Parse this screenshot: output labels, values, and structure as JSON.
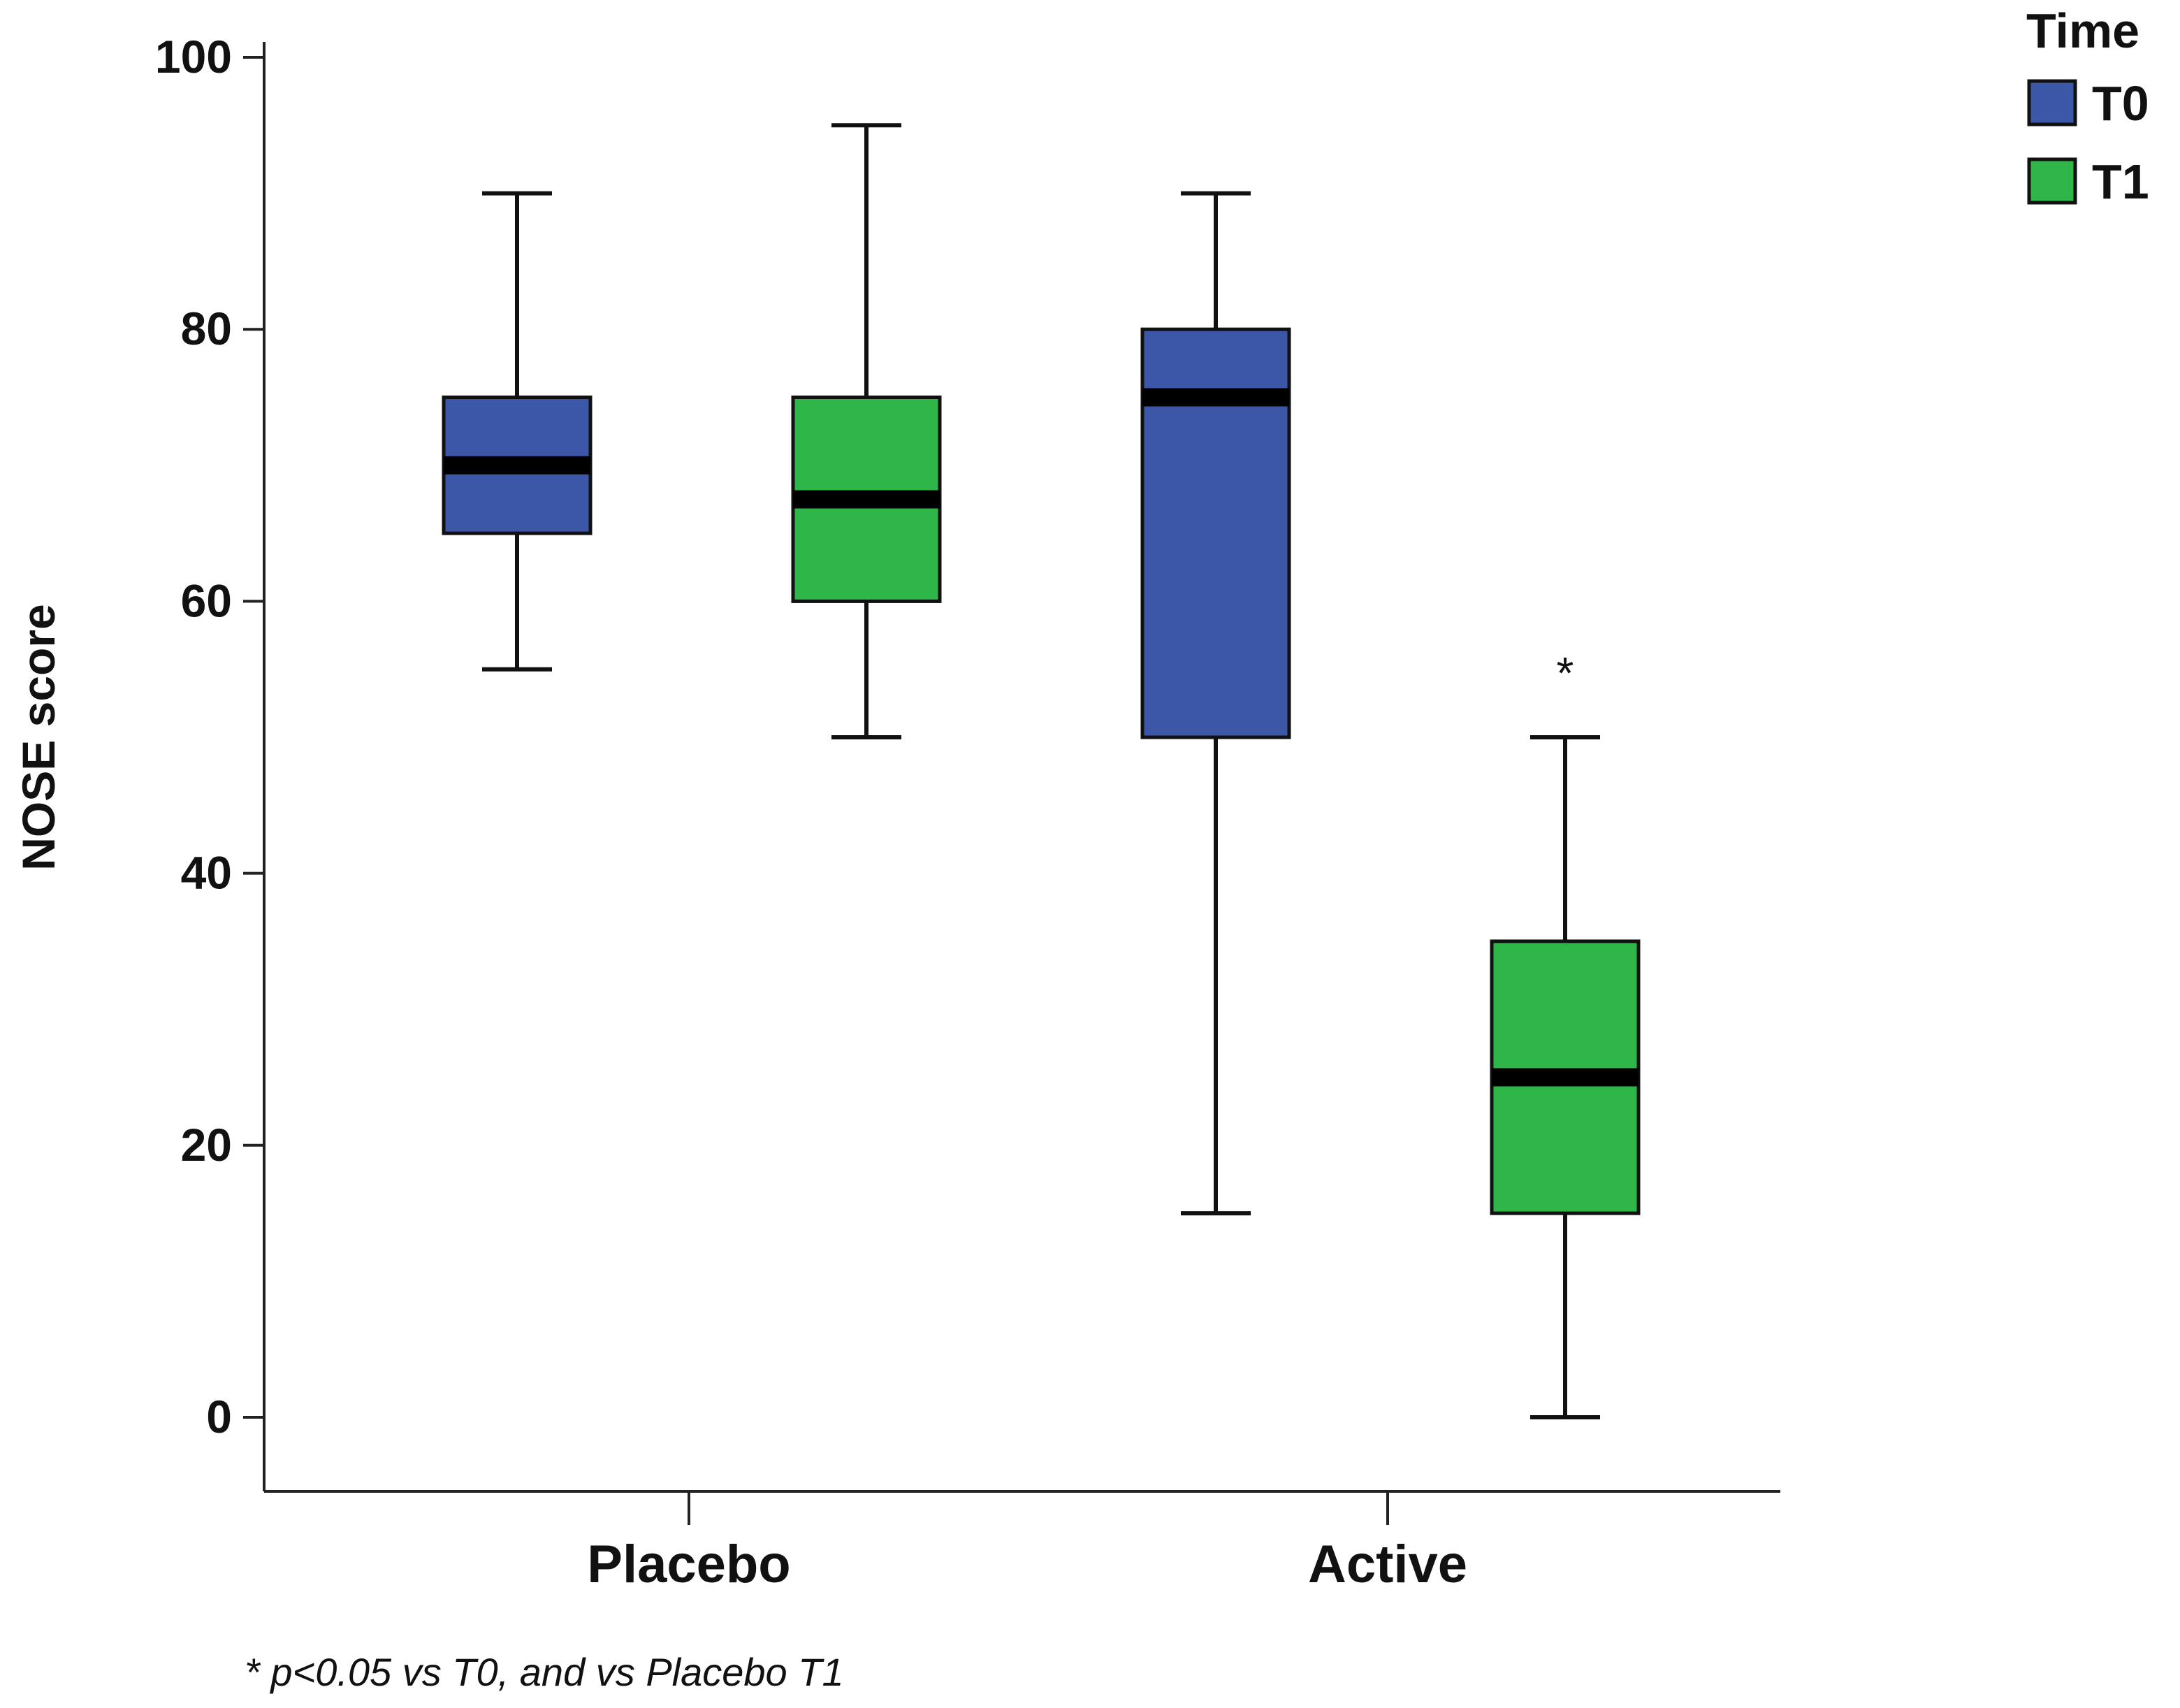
{
  "chart_data": {
    "type": "boxplot",
    "ylabel": "NOSE score",
    "xlabel": "",
    "ylim": [
      0,
      100
    ],
    "yticks": [
      0,
      20,
      40,
      60,
      80,
      100
    ],
    "categories": [
      "Placebo",
      "Active"
    ],
    "legend": {
      "title": "Time",
      "position": "top-right",
      "entries": [
        {
          "name": "T0",
          "color": "#3d57a8"
        },
        {
          "name": "T1",
          "color": "#2fb648"
        }
      ]
    },
    "series": [
      {
        "name": "T0",
        "color": "#3d57a8",
        "boxes": [
          {
            "category": "Placebo",
            "min": 55,
            "q1": 65,
            "median": 70,
            "q3": 75,
            "max": 90
          },
          {
            "category": "Active",
            "min": 15,
            "q1": 50,
            "median": 75,
            "q3": 80,
            "max": 90
          }
        ]
      },
      {
        "name": "T1",
        "color": "#2fb648",
        "boxes": [
          {
            "category": "Placebo",
            "min": 50,
            "q1": 60,
            "median": 67.5,
            "q3": 75,
            "max": 95
          },
          {
            "category": "Active",
            "min": 0,
            "q1": 15,
            "median": 25,
            "q3": 35,
            "max": 50,
            "annotation": "*"
          }
        ]
      }
    ],
    "footnote": "* p<0.05 vs T0, and vs Placebo T1"
  }
}
